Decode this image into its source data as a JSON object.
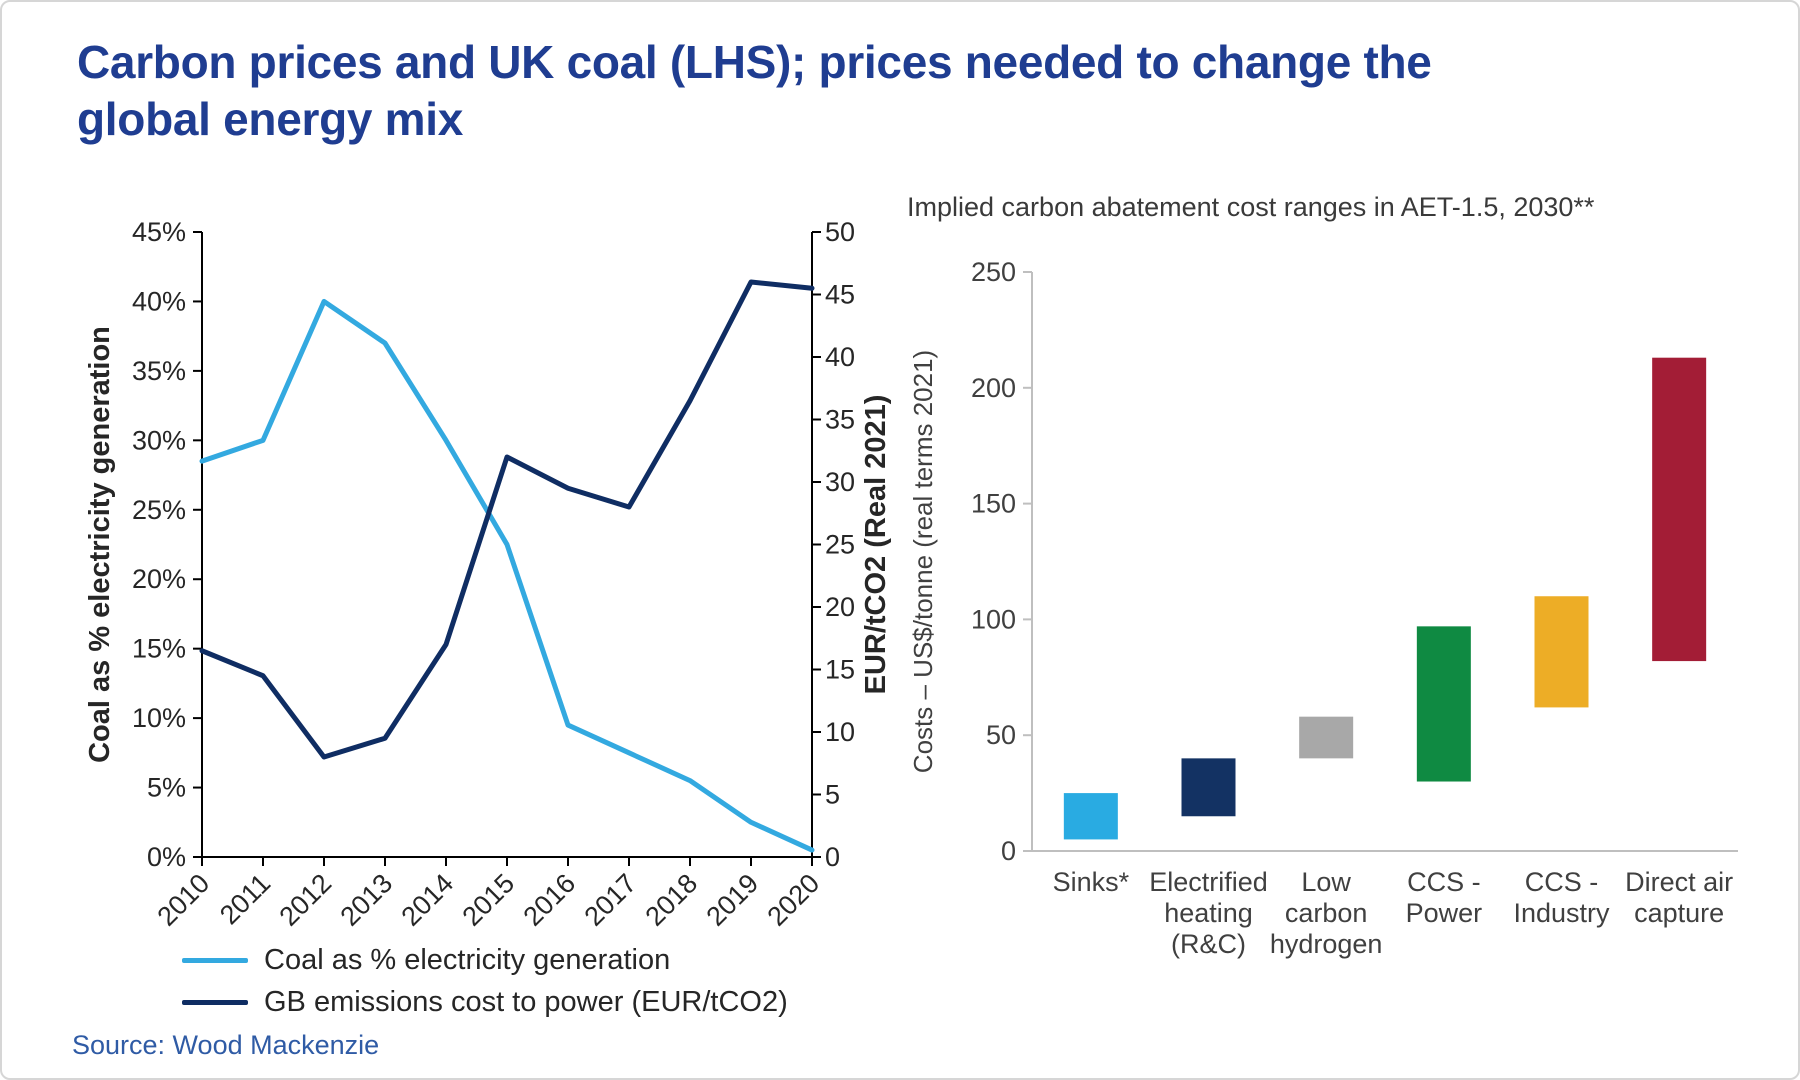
{
  "page": {
    "title_line1": "Carbon prices and UK coal (LHS); prices needed to change the",
    "title_line2": "global energy mix",
    "source": "Source: Wood Mackenzie"
  },
  "colors": {
    "title": "#1F3D91",
    "source": "#2F5BA5",
    "axis_dark": "#262626",
    "axis_gray": "#BFBFBF",
    "text_gray": "#404040"
  },
  "chart_data": [
    {
      "type": "line",
      "x": [
        "2010",
        "2011",
        "2012",
        "2013",
        "2014",
        "2015",
        "2016",
        "2017",
        "2018",
        "2019",
        "2020"
      ],
      "left_axis": {
        "label": "Coal as % electricity generation",
        "min": 0,
        "max": 45,
        "step": 5,
        "tick_suffix": "%"
      },
      "right_axis": {
        "label": "EUR/tCO2 (Real 2021)",
        "min": 0,
        "max": 50,
        "step": 5,
        "tick_suffix": ""
      },
      "series": [
        {
          "name": "Coal as % electricity generation",
          "axis": "left",
          "color": "#33A9E0",
          "values": [
            28.5,
            30,
            40,
            37,
            30,
            22.5,
            9.5,
            7.5,
            5.5,
            2.5,
            0.5
          ]
        },
        {
          "name": "GB emissions cost to power (EUR/tCO2)",
          "axis": "right",
          "color": "#0F2D63",
          "values": [
            16.5,
            14.5,
            8,
            9.5,
            17,
            32,
            29.5,
            28,
            36.5,
            46,
            45.5
          ]
        }
      ],
      "legend_position": "bottom",
      "grid": false
    },
    {
      "type": "bar",
      "subtype": "floating-range",
      "title": "Implied carbon abatement cost ranges in AET-1.5, 2030**",
      "ylabel": "Costs – US$/tonne (real terms 2021)",
      "ylim": [
        0,
        250
      ],
      "ystep": 50,
      "categories": [
        "Sinks*",
        "Electrified heating (R&C)",
        "Low carbon hydrogen",
        "CCS - Power",
        "CCS - Industry",
        "Direct air capture"
      ],
      "category_label_lines": [
        [
          "Sinks*"
        ],
        [
          "Electrified",
          "heating",
          "(R&C)"
        ],
        [
          "Low",
          "carbon",
          "hydrogen"
        ],
        [
          "CCS -",
          "Power"
        ],
        [
          "CCS -",
          "Industry"
        ],
        [
          "Direct air",
          "capture"
        ]
      ],
      "ranges": [
        [
          5,
          25
        ],
        [
          15,
          40
        ],
        [
          40,
          58
        ],
        [
          30,
          97
        ],
        [
          62,
          110
        ],
        [
          82,
          213
        ]
      ],
      "bar_colors": [
        "#29ABE2",
        "#133263",
        "#A8A8A8",
        "#0F8A42",
        "#EDAD26",
        "#A31D36"
      ],
      "grid": false,
      "legend": "none"
    }
  ]
}
